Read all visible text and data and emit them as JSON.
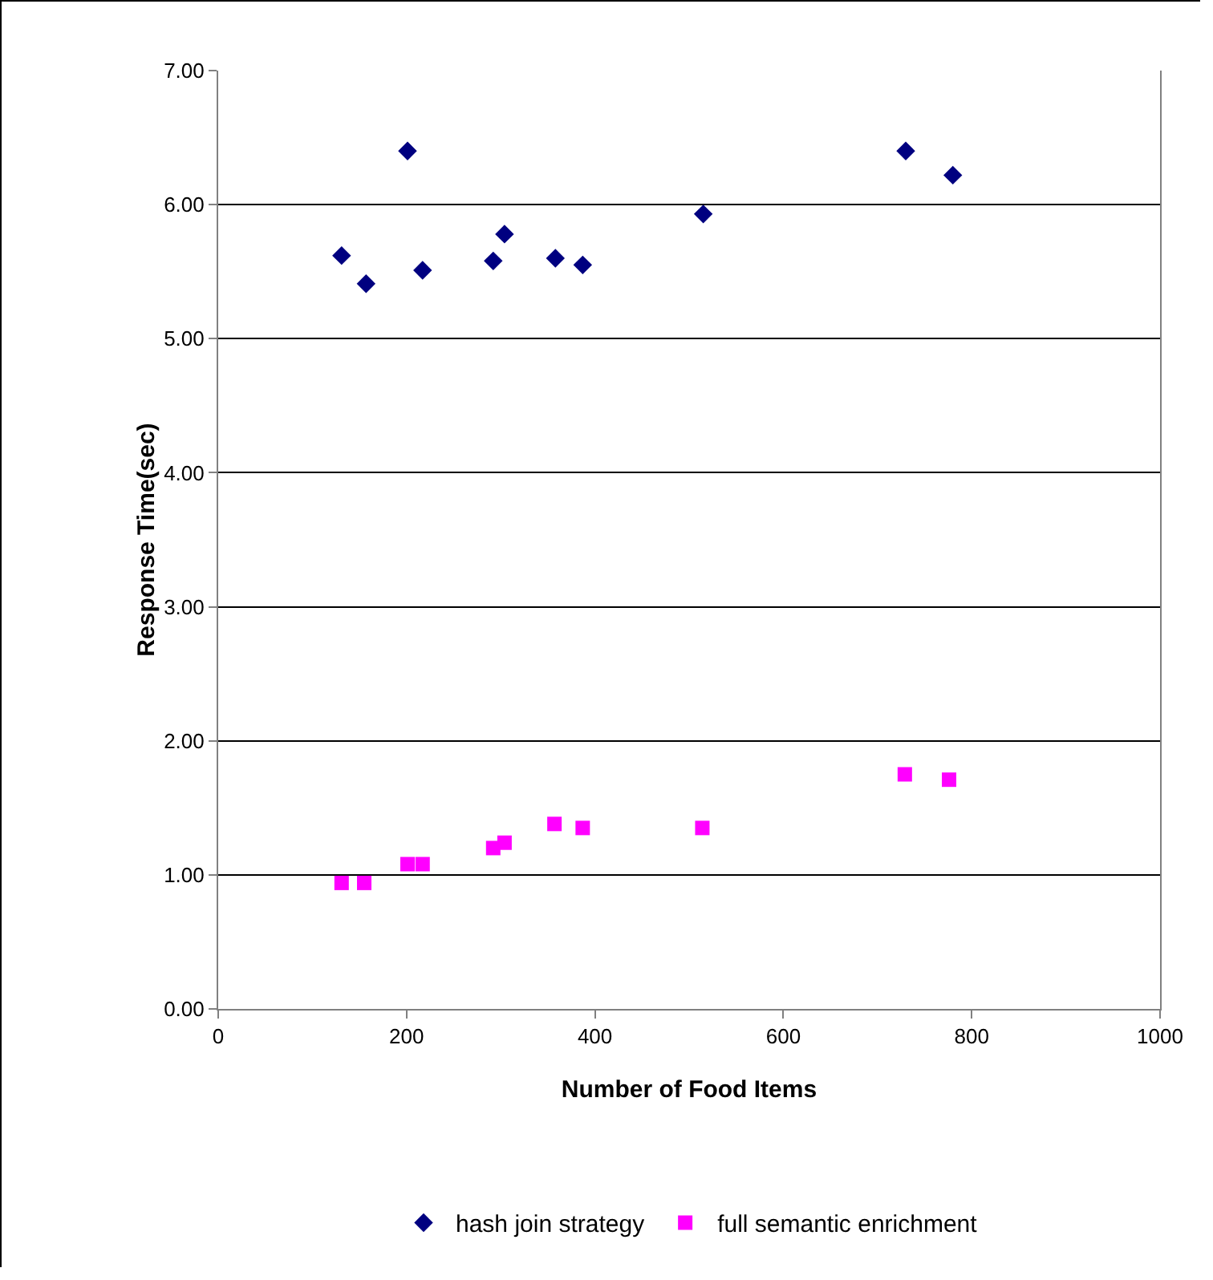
{
  "chart_data": {
    "type": "scatter",
    "xlabel": "Number of Food Items",
    "ylabel": "Response Time(sec)",
    "xlim": [
      0,
      1000
    ],
    "xticks": [
      0,
      200,
      400,
      600,
      800,
      1000
    ],
    "ylim": [
      0,
      7
    ],
    "yticks": [
      {
        "value": 0,
        "label": "0.00"
      },
      {
        "value": 1,
        "label": "1.00"
      },
      {
        "value": 2,
        "label": "2.00"
      },
      {
        "value": 3,
        "label": "3.00"
      },
      {
        "value": 4,
        "label": "4.00"
      },
      {
        "value": 5,
        "label": "5.00"
      },
      {
        "value": 6,
        "label": "6.00"
      },
      {
        "value": 7,
        "label": "7.00"
      }
    ],
    "grid": "y",
    "legend": "bottom",
    "series": [
      {
        "name": "hash join strategy",
        "color": "#000080",
        "marker": "diamond",
        "x": [
          131,
          157,
          201,
          217,
          292,
          304,
          358,
          387,
          515,
          730,
          780
        ],
        "values": [
          5.62,
          5.41,
          6.4,
          5.51,
          5.58,
          5.78,
          5.6,
          5.55,
          5.93,
          6.4,
          6.22
        ]
      },
      {
        "name": "full semantic enrichment",
        "color": "#ff00ff",
        "marker": "square",
        "x": [
          131,
          155,
          201,
          217,
          292,
          304,
          357,
          387,
          514,
          729,
          776
        ],
        "values": [
          0.94,
          0.94,
          1.08,
          1.08,
          1.2,
          1.24,
          1.38,
          1.35,
          1.35,
          1.75,
          1.71
        ]
      }
    ]
  }
}
